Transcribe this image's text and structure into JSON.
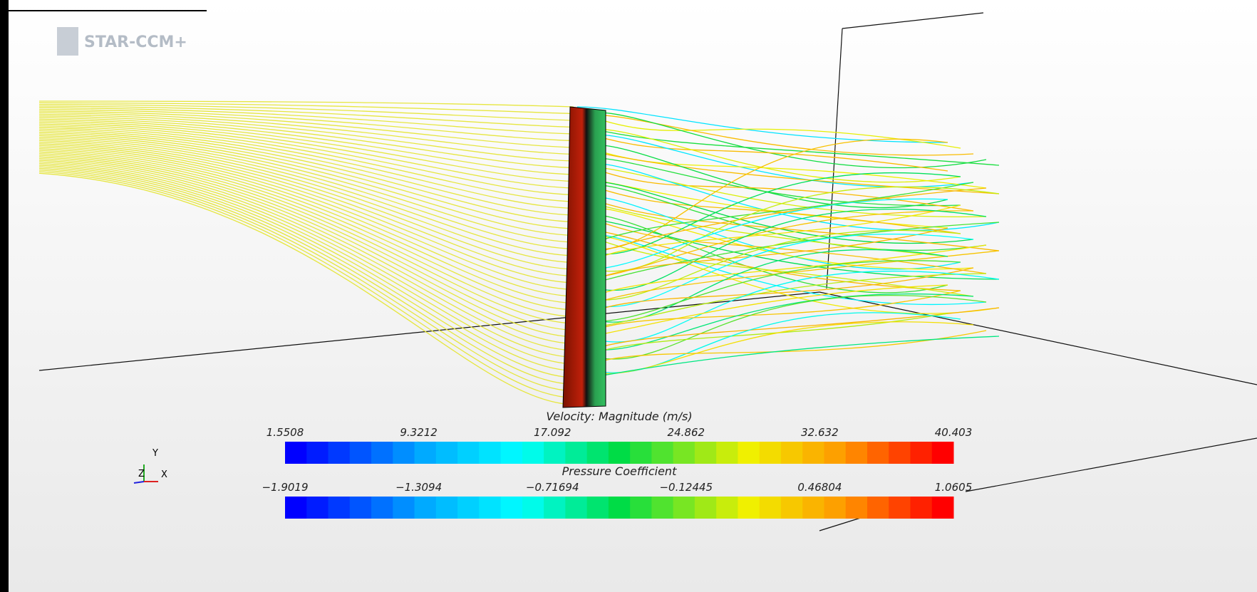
{
  "logo": "STAR-CCM+",
  "triad": {
    "y": "Y",
    "z": "Z",
    "x": "X"
  },
  "legends": [
    {
      "title": "Velocity: Magnitude (m/s)",
      "labels": [
        "1.5508",
        "9.3212",
        "17.092",
        "24.862",
        "32.632",
        "40.403"
      ]
    },
    {
      "title": "Pressure Coefficient",
      "labels": [
        "−1.9019",
        "−1.3094",
        "−0.71694",
        "−0.12445",
        "0.46804",
        "1.0605"
      ]
    }
  ]
}
